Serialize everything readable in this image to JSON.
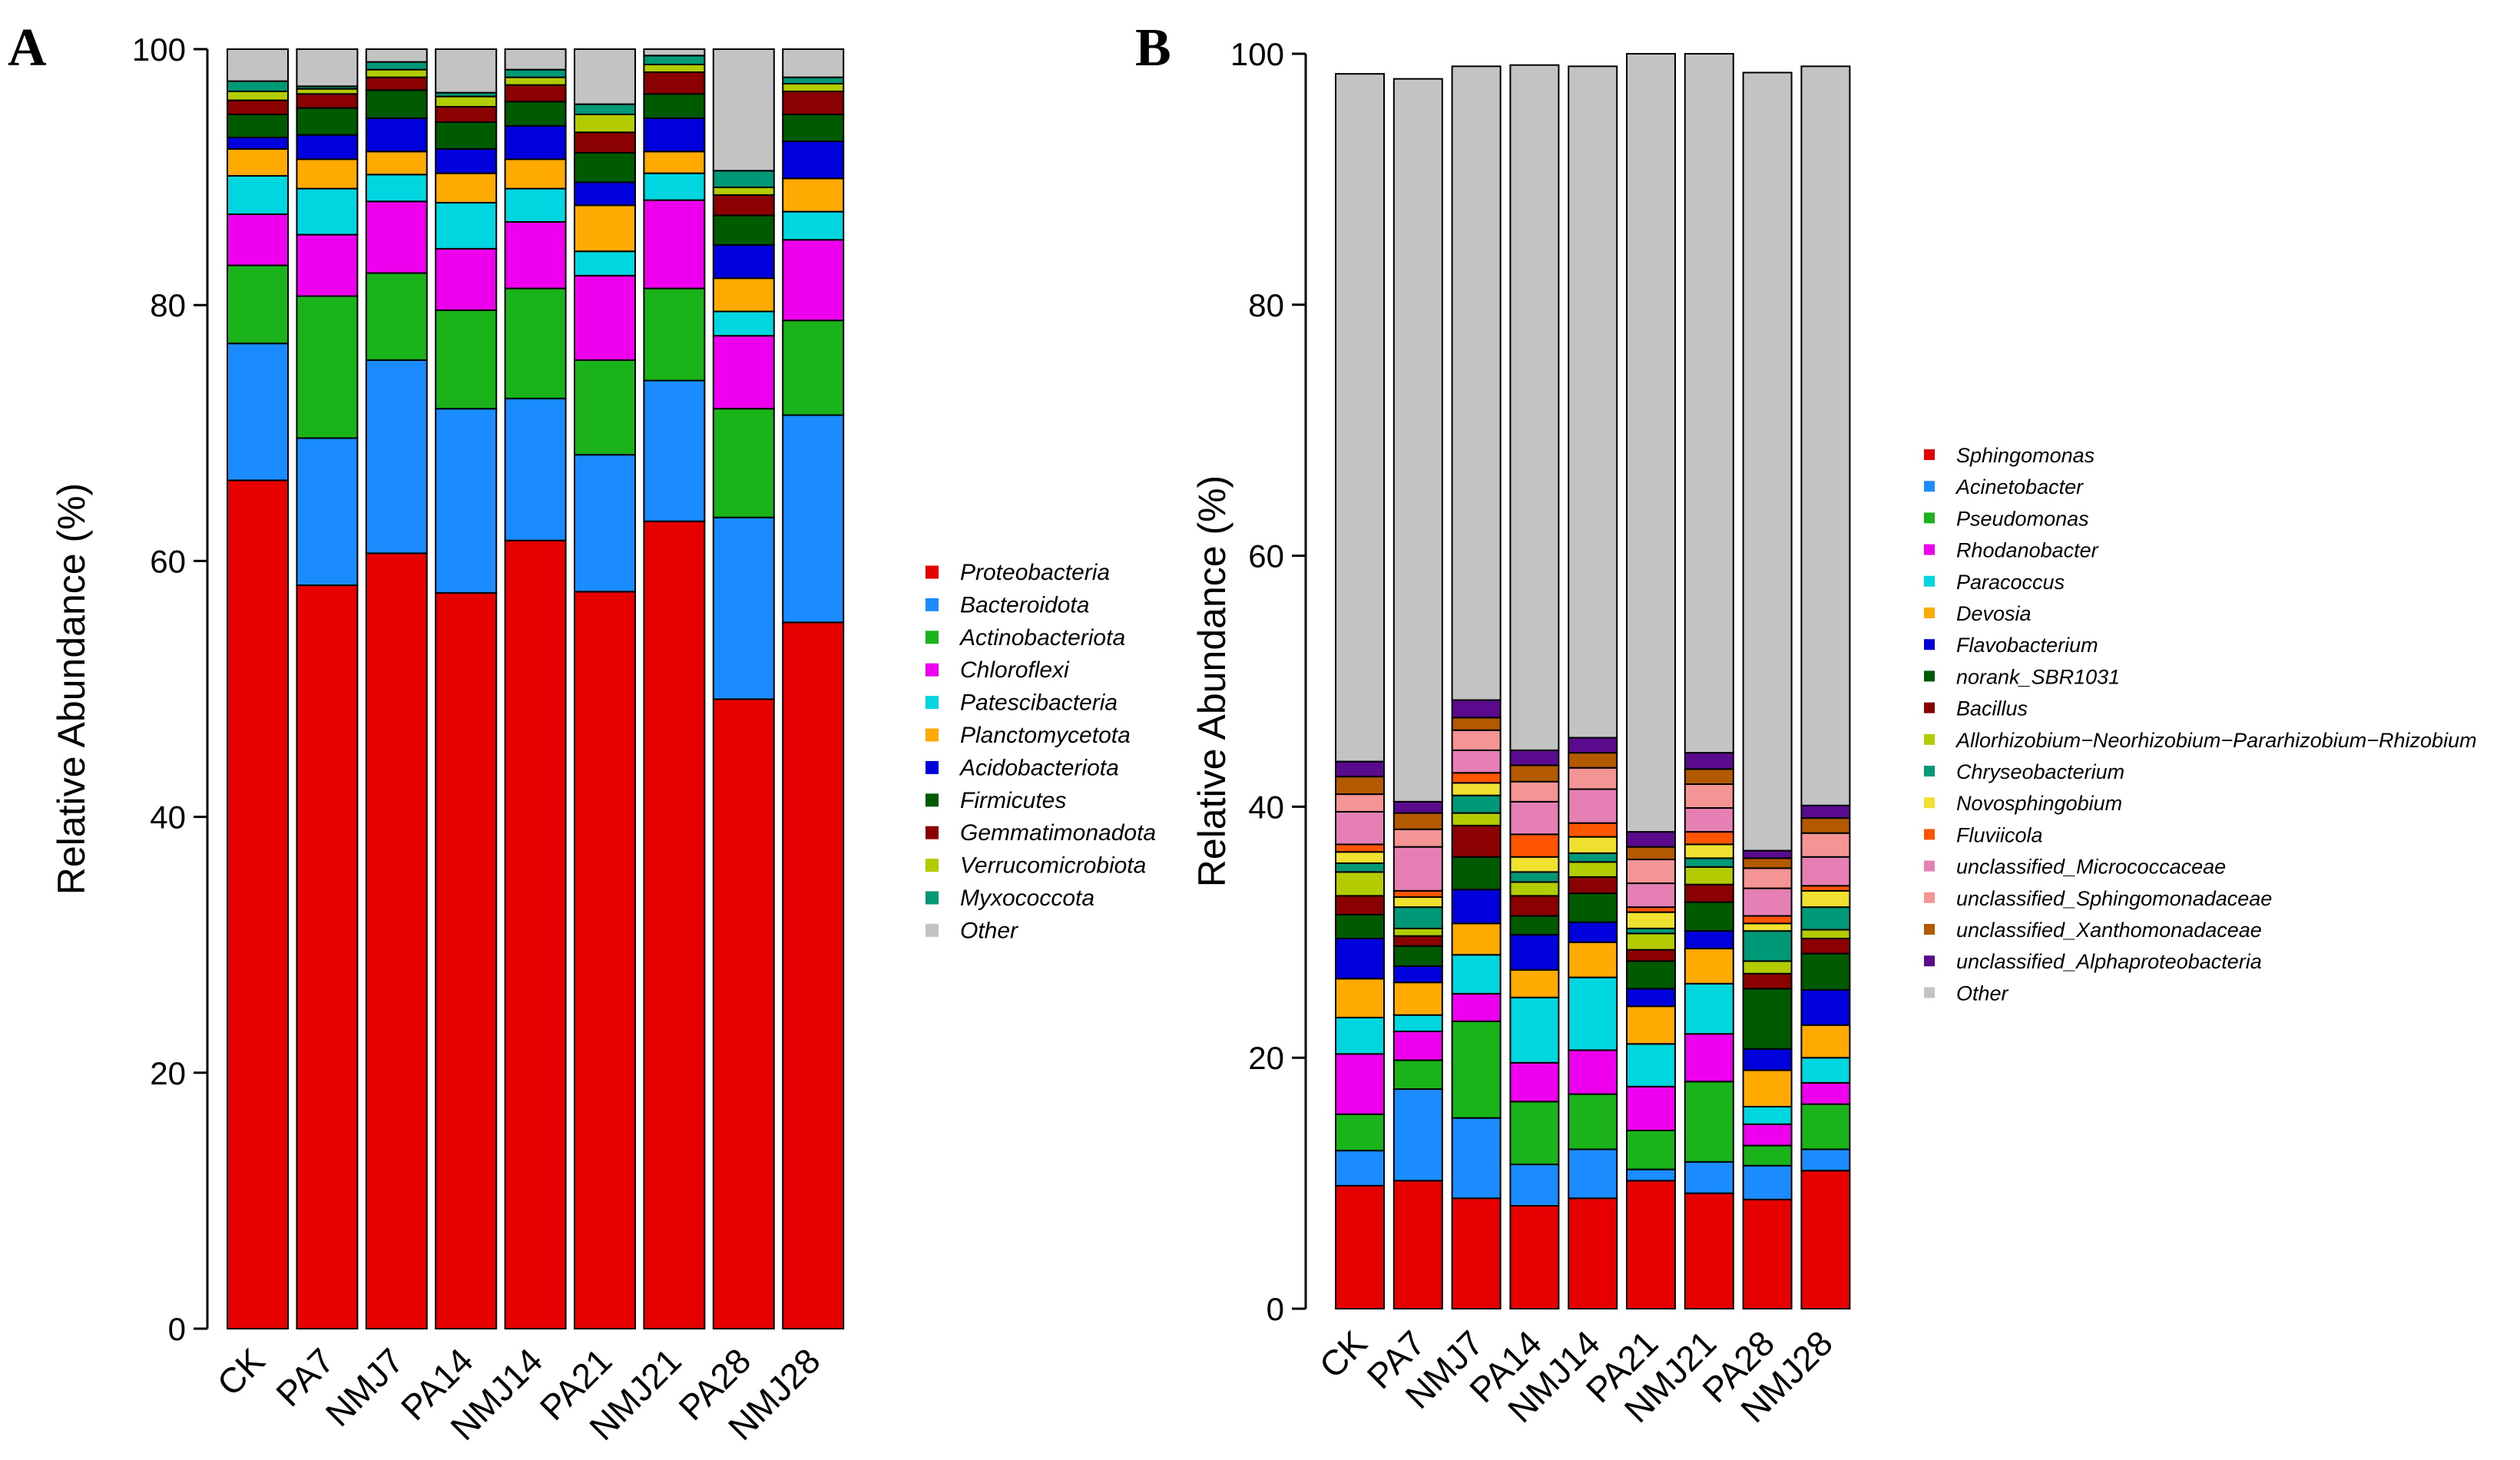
{
  "chart_data": [
    {
      "type": "bar",
      "stacked": true,
      "panel": "A",
      "ylabel": "Relative Abundance (%)",
      "xlabel": "",
      "ylim": [
        0,
        100
      ],
      "yticks": [
        "0",
        "20",
        "40",
        "60",
        "80",
        "100"
      ],
      "categories": [
        "CK",
        "PA7",
        "NMJ7",
        "PA14",
        "NMJ14",
        "PA21",
        "NMJ21",
        "PA28",
        "NMJ28"
      ],
      "legend_position": "right",
      "series": [
        {
          "name": "Proteobacteria",
          "color": "#e60000",
          "values": [
            66.3,
            58.1,
            60.6,
            57.5,
            61.6,
            57.6,
            63.1,
            49.2,
            55.2
          ]
        },
        {
          "name": "Bacteroidota",
          "color": "#1a8cff",
          "values": [
            10.7,
            11.5,
            15.1,
            14.4,
            11.1,
            10.7,
            11.0,
            14.2,
            16.2
          ]
        },
        {
          "name": "Actinobacteriota",
          "color": "#1ab31a",
          "values": [
            6.1,
            11.1,
            6.8,
            7.7,
            8.6,
            7.4,
            7.2,
            8.5,
            7.4
          ]
        },
        {
          "name": "Chloroflexi",
          "color": "#ee00ee",
          "values": [
            4.0,
            4.8,
            5.6,
            4.8,
            5.2,
            6.6,
            6.9,
            5.7,
            6.3
          ]
        },
        {
          "name": "Patescibacteria",
          "color": "#00d6e0",
          "values": [
            3.0,
            3.6,
            2.1,
            3.6,
            2.6,
            1.9,
            2.1,
            1.9,
            2.2
          ]
        },
        {
          "name": "Planctomycetota",
          "color": "#ffaa00",
          "values": [
            2.1,
            2.3,
            1.8,
            2.3,
            2.3,
            3.6,
            1.7,
            2.6,
            2.6
          ]
        },
        {
          "name": "Acidobacteriota",
          "color": "#0000dd",
          "values": [
            0.9,
            1.9,
            2.6,
            1.9,
            2.6,
            1.8,
            2.6,
            2.6,
            2.9
          ]
        },
        {
          "name": "Firmicutes",
          "color": "#005a00",
          "values": [
            1.8,
            2.1,
            2.2,
            2.1,
            1.9,
            2.3,
            1.9,
            2.3,
            2.1
          ]
        },
        {
          "name": "Gemmatimonadota",
          "color": "#8b0000",
          "values": [
            1.1,
            1.1,
            1.0,
            1.2,
            1.3,
            1.6,
            1.7,
            1.6,
            1.8
          ]
        },
        {
          "name": "Verrucomicrobiota",
          "color": "#b3cc00",
          "values": [
            0.7,
            0.4,
            0.6,
            0.8,
            0.6,
            1.4,
            0.6,
            0.6,
            0.6
          ]
        },
        {
          "name": "Myxococcota",
          "color": "#009977",
          "values": [
            0.8,
            0.2,
            0.6,
            0.3,
            0.6,
            0.8,
            0.7,
            1.3,
            0.5
          ]
        },
        {
          "name": "Other",
          "color": "#c3c3c3",
          "values": [
            2.5,
            2.9,
            1.0,
            3.4,
            1.6,
            4.3,
            0.5,
            9.5,
            2.2
          ]
        }
      ]
    },
    {
      "type": "bar",
      "stacked": true,
      "panel": "B",
      "ylabel": "Relative Abundance (%)",
      "xlabel": "",
      "ylim": [
        0,
        100
      ],
      "yticks": [
        "0",
        "20",
        "40",
        "60",
        "80",
        "100"
      ],
      "categories": [
        "CK",
        "PA7",
        "NMJ7",
        "PA14",
        "NMJ14",
        "PA21",
        "NMJ21",
        "PA28",
        "NMJ28"
      ],
      "legend_position": "right",
      "series": [
        {
          "name": "Sphingomonas",
          "color": "#e60000",
          "values": [
            9.8,
            10.2,
            8.8,
            8.2,
            8.8,
            10.2,
            9.2,
            8.7,
            11.0
          ]
        },
        {
          "name": "Acinetobacter",
          "color": "#1a8cff",
          "values": [
            2.8,
            7.3,
            6.4,
            3.3,
            3.9,
            0.9,
            2.5,
            2.7,
            1.7
          ]
        },
        {
          "name": "Pseudomonas",
          "color": "#1ab31a",
          "values": [
            2.9,
            2.3,
            7.7,
            5.0,
            4.4,
            3.1,
            6.4,
            1.6,
            3.6
          ]
        },
        {
          "name": "Rhodanobacter",
          "color": "#ee00ee",
          "values": [
            4.8,
            2.3,
            2.2,
            3.1,
            3.5,
            3.5,
            3.8,
            1.7,
            1.7
          ]
        },
        {
          "name": "Paracoccus",
          "color": "#00d6e0",
          "values": [
            2.9,
            1.3,
            3.1,
            5.2,
            5.8,
            3.4,
            4.0,
            1.4,
            2.0
          ]
        },
        {
          "name": "Devosia",
          "color": "#ffaa00",
          "values": [
            3.1,
            2.6,
            2.5,
            2.2,
            2.8,
            3.0,
            2.8,
            2.9,
            2.6
          ]
        },
        {
          "name": "Flavobacterium",
          "color": "#0000dd",
          "values": [
            3.2,
            1.3,
            2.7,
            2.8,
            1.6,
            1.4,
            1.4,
            1.7,
            2.8
          ]
        },
        {
          "name": "norank_SBR1031",
          "color": "#005a00",
          "values": [
            1.9,
            1.6,
            2.6,
            1.5,
            2.3,
            2.2,
            2.3,
            4.8,
            2.9
          ]
        },
        {
          "name": "Bacillus",
          "color": "#8b0000",
          "values": [
            1.5,
            0.8,
            2.5,
            1.6,
            1.3,
            0.9,
            1.4,
            1.2,
            1.2
          ]
        },
        {
          "name": "Allorhizobium−Neorhizobium−Pararhizobium−Rhizobium",
          "color": "#b3cc00",
          "values": [
            1.9,
            0.6,
            1.0,
            1.1,
            1.2,
            1.3,
            1.4,
            1.0,
            0.7
          ]
        },
        {
          "name": "Chryseobacterium",
          "color": "#009977",
          "values": [
            0.7,
            1.7,
            1.4,
            0.8,
            0.7,
            0.4,
            0.7,
            2.4,
            1.8
          ]
        },
        {
          "name": "Novosphingobium",
          "color": "#f0e130",
          "values": [
            0.9,
            0.8,
            1.0,
            1.2,
            1.3,
            1.3,
            1.1,
            0.6,
            1.3
          ]
        },
        {
          "name": "Fluviicola",
          "color": "#ff5500",
          "values": [
            0.6,
            0.5,
            0.8,
            1.8,
            1.1,
            0.4,
            1.0,
            0.6,
            0.4
          ]
        },
        {
          "name": "unclassified_Micrococcaceae",
          "color": "#e67fb3",
          "values": [
            2.6,
            3.5,
            1.8,
            2.6,
            2.7,
            1.9,
            1.9,
            2.2,
            2.3
          ]
        },
        {
          "name": "unclassified_Sphingomonadaceae",
          "color": "#f49494",
          "values": [
            1.4,
            1.4,
            1.6,
            1.6,
            1.7,
            1.9,
            1.9,
            1.6,
            1.9
          ]
        },
        {
          "name": "unclassified_Xanthomonadaceae",
          "color": "#b35900",
          "values": [
            1.4,
            1.3,
            1.0,
            1.3,
            1.2,
            1.0,
            1.2,
            0.8,
            1.2
          ]
        },
        {
          "name": "unclassified_Alphaproteobacteria",
          "color": "#5a0a8c",
          "values": [
            1.2,
            0.9,
            1.4,
            1.2,
            1.2,
            1.2,
            1.3,
            0.6,
            1.0
          ]
        },
        {
          "name": "Other",
          "color": "#c3c3c3",
          "values": [
            54.8,
            57.6,
            50.5,
            54.6,
            53.5,
            62.0,
            55.7,
            62.0,
            58.9
          ]
        }
      ]
    }
  ]
}
